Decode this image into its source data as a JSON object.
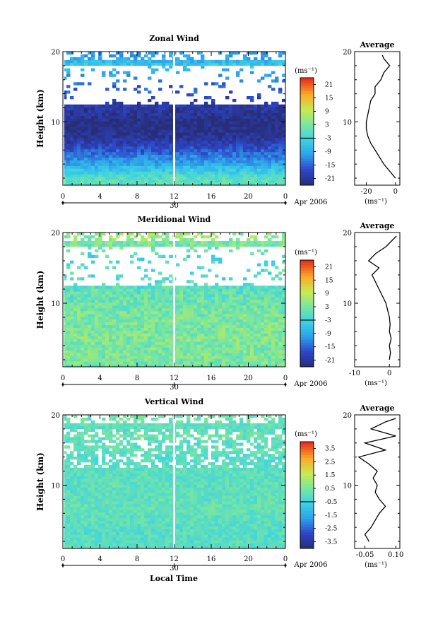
{
  "figure": {
    "xlabel": "Local Time",
    "date_day": "30",
    "date_label": "Apr 2006",
    "units_label": "(ms⁻¹)",
    "avg_units_label": "(ms⁻¹)",
    "avg_title": "Average",
    "ylabel": "Height (km)"
  },
  "chart_data": [
    {
      "type": "heatmap",
      "title": "Zonal Wind",
      "xlabel": "",
      "ylabel": "Height (km)",
      "x_ticks": [
        "0",
        "4",
        "8",
        "12",
        "16",
        "20",
        "0"
      ],
      "y_ticks": [
        "10",
        "20"
      ],
      "xlim": [
        0,
        24
      ],
      "ylim": [
        1,
        20
      ],
      "colorbar": {
        "ticks": [
          "21",
          "15",
          "9",
          "3",
          "-3",
          "-9",
          "-15",
          "-21"
        ],
        "range": [
          -24,
          24
        ]
      },
      "description_values": {
        "jet_core_height_km": 8,
        "min_speed": -21,
        "surface_speed": 0
      },
      "average_profile": {
        "title": "Average",
        "x_ticks": [
          "-20",
          "0"
        ],
        "xlim": [
          -28,
          3
        ],
        "heights": [
          2,
          3,
          4,
          5,
          6,
          7,
          8,
          9,
          10,
          11,
          12,
          13,
          14,
          15,
          16,
          17,
          18,
          19,
          19.5
        ],
        "values": [
          0,
          -4,
          -8,
          -11,
          -14,
          -17,
          -19,
          -20,
          -20,
          -19,
          -18,
          -17,
          -14,
          -14,
          -10,
          -8,
          -4,
          -8,
          -9
        ]
      }
    },
    {
      "type": "heatmap",
      "title": "Meridional Wind",
      "xlabel": "",
      "ylabel": "Height (km)",
      "x_ticks": [
        "0",
        "4",
        "8",
        "12",
        "16",
        "20",
        "0"
      ],
      "y_ticks": [
        "10",
        "20"
      ],
      "xlim": [
        0,
        24
      ],
      "ylim": [
        1,
        20
      ],
      "colorbar": {
        "ticks": [
          "21",
          "15",
          "9",
          "3",
          "-3",
          "-9",
          "-15",
          "-21"
        ],
        "range": [
          -24,
          24
        ]
      },
      "average_profile": {
        "title": "Average",
        "x_ticks": [
          "-10",
          "0"
        ],
        "xlim": [
          -10,
          3
        ],
        "heights": [
          2,
          3,
          4,
          5,
          6,
          7,
          8,
          9,
          10,
          11,
          12,
          13,
          14,
          15,
          16,
          17,
          18,
          19,
          19.5
        ],
        "values": [
          0,
          0.3,
          0,
          0.5,
          0,
          0.2,
          0,
          -0.5,
          -1,
          -2,
          -3,
          -4,
          -5,
          -3,
          -6,
          -4,
          -1,
          1,
          2
        ]
      }
    },
    {
      "type": "heatmap",
      "title": "Vertical Wind",
      "xlabel": "Local Time",
      "ylabel": "Height (km)",
      "x_ticks": [
        "0",
        "4",
        "8",
        "12",
        "16",
        "20",
        "0"
      ],
      "y_ticks": [
        "10",
        "20"
      ],
      "xlim": [
        0,
        24
      ],
      "ylim": [
        1,
        20
      ],
      "colorbar": {
        "ticks": [
          "3.5",
          "2.5",
          "1.5",
          "0.5",
          "-0.5",
          "-1.5",
          "-2.5",
          "-3.5"
        ],
        "range": [
          -4,
          4
        ]
      },
      "average_profile": {
        "title": "Average",
        "x_ticks": [
          "-0.05",
          "0.10"
        ],
        "xlim": [
          -0.1,
          0.12
        ],
        "heights": [
          2,
          3,
          4,
          5,
          6,
          7,
          8,
          9,
          10,
          11,
          12,
          13,
          14,
          15,
          16,
          17,
          18,
          19,
          19.5
        ],
        "values": [
          -0.03,
          -0.05,
          -0.02,
          0.0,
          0.02,
          0.05,
          0.02,
          0.0,
          0.01,
          -0.01,
          0.01,
          -0.03,
          -0.08,
          0.05,
          -0.05,
          0.1,
          -0.02,
          0.05,
          0.1
        ]
      }
    }
  ]
}
